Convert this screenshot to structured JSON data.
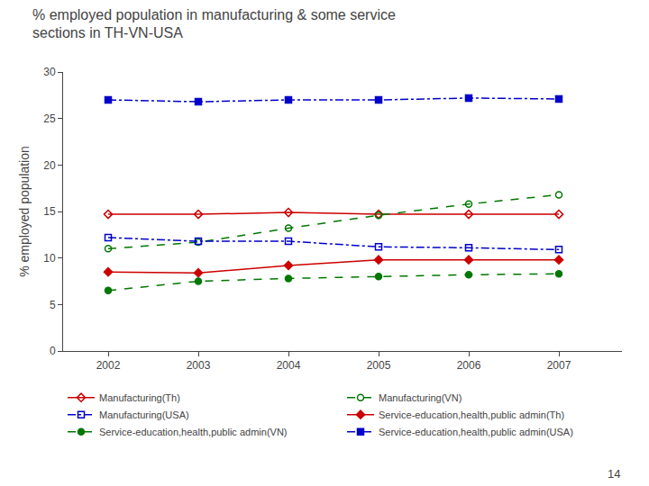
{
  "chart_data": {
    "type": "line",
    "title": "% employed population in manufacturing & some service\nsections in TH-VN-USA",
    "ylabel": "% employed population",
    "x": [
      2002,
      2003,
      2004,
      2005,
      2006,
      2007
    ],
    "xlim": [
      2001.5,
      2007.7
    ],
    "xticks": [
      2002,
      2003,
      2004,
      2005,
      2006,
      2007
    ],
    "ylim": [
      0,
      30
    ],
    "yticks": [
      0,
      5,
      10,
      15,
      20,
      25,
      30
    ],
    "grid": false,
    "legend": "bottom",
    "annotations": [
      {
        "text": "14"
      }
    ],
    "series": [
      {
        "name": "Manufacturing(Th)",
        "color": "#cc0000",
        "marker": "diamond-open",
        "line_style": "solid",
        "values": [
          14.7,
          14.7,
          14.9,
          14.7,
          14.7,
          14.7
        ]
      },
      {
        "name": "Manufacturing(VN)",
        "color": "#007700",
        "marker": "circle-open",
        "line_style": "dash",
        "values": [
          11.0,
          11.7,
          13.2,
          14.6,
          15.8,
          16.8
        ]
      },
      {
        "name": "Manufacturing(USA)",
        "color": "#0000cc",
        "marker": "square-open",
        "line_style": "dashdot",
        "values": [
          12.2,
          11.8,
          11.8,
          11.2,
          11.1,
          10.9
        ]
      },
      {
        "name": "Service-education,health,public admin(Th)",
        "color": "#cc0000",
        "marker": "diamond",
        "line_style": "solid",
        "values": [
          8.5,
          8.4,
          9.2,
          9.8,
          9.8,
          9.8
        ]
      },
      {
        "name": "Service-education,health,public admin(VN)",
        "color": "#007700",
        "marker": "circle",
        "line_style": "dash",
        "values": [
          6.5,
          7.5,
          7.8,
          8.0,
          8.2,
          8.3
        ]
      },
      {
        "name": "Service-education,health,public admin(USA)",
        "color": "#0000cc",
        "marker": "square",
        "line_style": "dashdot",
        "values": [
          27.0,
          26.8,
          27.0,
          27.0,
          27.2,
          27.1
        ]
      }
    ]
  }
}
